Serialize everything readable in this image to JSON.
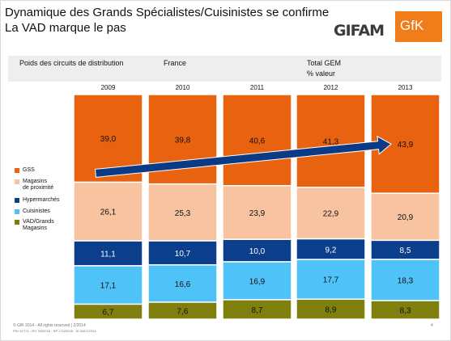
{
  "header": {
    "title_line1": "Dynamique des Grands Spécialistes/Cuisinistes se confirme",
    "title_line2": "La VAD marque le pas",
    "logo_left": "GIFAM",
    "logo_right": "GfK"
  },
  "table_header": {
    "col1": "Poids des circuits de distribution",
    "col2": "France",
    "col3_line1": "Total GEM",
    "col3_line2": "% valeur"
  },
  "chart_data": {
    "type": "bar",
    "stacked": true,
    "percent": true,
    "categories": [
      "2009",
      "2010",
      "2011",
      "2012",
      "2013"
    ],
    "series": [
      {
        "name": "VAD/Grands Magasins",
        "color": "#7f7f0e",
        "values": [
          6.7,
          7.6,
          8.7,
          8.9,
          8.3
        ],
        "labels": [
          "6,7",
          "7,6",
          "8,7",
          "8,9",
          "8,3"
        ]
      },
      {
        "name": "Cuisinistes",
        "color": "#4fc3f7",
        "values": [
          17.1,
          16.6,
          16.9,
          17.7,
          18.3
        ],
        "labels": [
          "17,1",
          "16,6",
          "16,9",
          "17,7",
          "18,3"
        ]
      },
      {
        "name": "Hypermarchés",
        "color": "#0b3f8c",
        "values": [
          11.1,
          10.7,
          10.0,
          9.2,
          8.5
        ],
        "labels": [
          "11,1",
          "10,7",
          "10,0",
          "9,2",
          "8,5"
        ]
      },
      {
        "name": "Magasins de proximité",
        "color": "#f7c3a0",
        "values": [
          26.1,
          25.3,
          23.9,
          22.9,
          20.9
        ],
        "labels": [
          "26,1",
          "25,3",
          "23,9",
          "22,9",
          "20,9"
        ]
      },
      {
        "name": "GSS",
        "color": "#e8620f",
        "values": [
          39.0,
          39.8,
          40.6,
          41.3,
          43.9
        ],
        "labels": [
          "39,0",
          "39,8",
          "40,6",
          "41,3",
          "43,9"
        ]
      }
    ],
    "annotation": {
      "type": "arrow",
      "from": "2009",
      "to": "2013",
      "series": "GSS"
    }
  },
  "legend": [
    {
      "line1": "GSS",
      "line2": "",
      "color": "#e8620f"
    },
    {
      "line1": "Magasins",
      "line2": "de proximité",
      "color": "#f7c3a0"
    },
    {
      "line1": "Hypermarchés",
      "line2": "",
      "color": "#0b3f8c"
    },
    {
      "line1": "Cuisinistes",
      "line2": "",
      "color": "#4fc3f7"
    },
    {
      "line1": "VAD/Grands",
      "line2": "Magasins",
      "color": "#7f7f0e"
    }
  ],
  "footer": {
    "copyright": "© GfK 2014 - All rights reserved | 2/2014",
    "reference": "PRJ 92721 - RG 3354016 - RP 17325248 - ID 348722316",
    "page_number": "4"
  }
}
